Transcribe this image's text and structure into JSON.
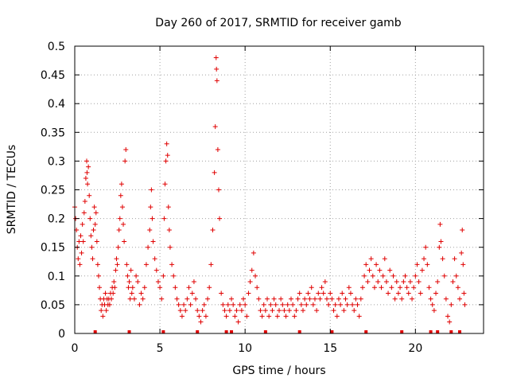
{
  "chart_data": {
    "type": "scatter",
    "title": "Day 260 of 2017, SRMTID for receiver gamb",
    "xlabel": "GPS time / hours",
    "ylabel": "SRMTID / TECUs",
    "xlim": [
      0,
      24
    ],
    "ylim": [
      0,
      0.5
    ],
    "grid": true,
    "marker": "+",
    "color": "#e00000",
    "x_ticks": [
      {
        "value": 0,
        "label": "0"
      },
      {
        "value": 5,
        "label": "5"
      },
      {
        "value": 10,
        "label": "10"
      },
      {
        "value": 15,
        "label": "15"
      },
      {
        "value": 20,
        "label": "20"
      }
    ],
    "y_ticks": [
      {
        "value": 0,
        "label": "0"
      },
      {
        "value": 0.05,
        "label": "0.05"
      },
      {
        "value": 0.1,
        "label": "0.1"
      },
      {
        "value": 0.15,
        "label": "0.15"
      },
      {
        "value": 0.2,
        "label": "0.2"
      },
      {
        "value": 0.25,
        "label": "0.25"
      },
      {
        "value": 0.3,
        "label": "0.3"
      },
      {
        "value": 0.35,
        "label": "0.35"
      },
      {
        "value": 0.4,
        "label": "0.4"
      },
      {
        "value": 0.45,
        "label": "0.45"
      },
      {
        "value": 0.5,
        "label": "0.5"
      }
    ],
    "series": [
      {
        "name": "SRMTID",
        "points": [
          [
            0.0,
            0.22
          ],
          [
            0.05,
            0.2
          ],
          [
            0.1,
            0.18
          ],
          [
            0.15,
            0.15
          ],
          [
            0.2,
            0.13
          ],
          [
            0.25,
            0.16
          ],
          [
            0.3,
            0.12
          ],
          [
            0.35,
            0.17
          ],
          [
            0.4,
            0.14
          ],
          [
            0.45,
            0.19
          ],
          [
            0.5,
            0.16
          ],
          [
            0.55,
            0.21
          ],
          [
            0.6,
            0.23
          ],
          [
            0.65,
            0.27
          ],
          [
            0.7,
            0.3
          ],
          [
            0.72,
            0.28
          ],
          [
            0.75,
            0.26
          ],
          [
            0.8,
            0.29
          ],
          [
            0.85,
            0.24
          ],
          [
            0.9,
            0.2
          ],
          [
            0.95,
            0.17
          ],
          [
            1.0,
            0.15
          ],
          [
            1.05,
            0.13
          ],
          [
            1.1,
            0.18
          ],
          [
            1.15,
            0.22
          ],
          [
            1.2,
            0.19
          ],
          [
            1.25,
            0.21
          ],
          [
            1.3,
            0.16
          ],
          [
            1.35,
            0.12
          ],
          [
            1.4,
            0.1
          ],
          [
            1.45,
            0.08
          ],
          [
            1.5,
            0.06
          ],
          [
            1.55,
            0.04
          ],
          [
            1.6,
            0.05
          ],
          [
            1.65,
            0.03
          ],
          [
            1.7,
            0.06
          ],
          [
            1.75,
            0.05
          ],
          [
            1.8,
            0.07
          ],
          [
            1.85,
            0.04
          ],
          [
            1.9,
            0.06
          ],
          [
            1.95,
            0.05
          ],
          [
            2.0,
            0.06
          ],
          [
            2.05,
            0.05
          ],
          [
            2.1,
            0.07
          ],
          [
            2.15,
            0.06
          ],
          [
            2.2,
            0.08
          ],
          [
            2.25,
            0.07
          ],
          [
            2.3,
            0.09
          ],
          [
            2.35,
            0.08
          ],
          [
            2.4,
            0.11
          ],
          [
            2.45,
            0.13
          ],
          [
            2.5,
            0.12
          ],
          [
            2.55,
            0.15
          ],
          [
            2.6,
            0.18
          ],
          [
            2.65,
            0.2
          ],
          [
            2.7,
            0.24
          ],
          [
            2.75,
            0.26
          ],
          [
            2.8,
            0.22
          ],
          [
            2.85,
            0.19
          ],
          [
            2.9,
            0.16
          ],
          [
            2.95,
            0.3
          ],
          [
            3.0,
            0.32
          ],
          [
            3.05,
            0.12
          ],
          [
            3.1,
            0.1
          ],
          [
            3.15,
            0.08
          ],
          [
            3.2,
            0.09
          ],
          [
            3.25,
            0.06
          ],
          [
            3.3,
            0.11
          ],
          [
            3.35,
            0.07
          ],
          [
            3.4,
            0.08
          ],
          [
            3.5,
            0.06
          ],
          [
            3.6,
            0.1
          ],
          [
            3.7,
            0.09
          ],
          [
            3.8,
            0.05
          ],
          [
            3.9,
            0.07
          ],
          [
            4.0,
            0.06
          ],
          [
            4.1,
            0.08
          ],
          [
            4.2,
            0.12
          ],
          [
            4.3,
            0.15
          ],
          [
            4.4,
            0.18
          ],
          [
            4.45,
            0.22
          ],
          [
            4.5,
            0.25
          ],
          [
            4.55,
            0.2
          ],
          [
            4.6,
            0.16
          ],
          [
            4.7,
            0.13
          ],
          [
            4.8,
            0.11
          ],
          [
            4.9,
            0.09
          ],
          [
            5.0,
            0.08
          ],
          [
            5.1,
            0.06
          ],
          [
            5.2,
            0.1
          ],
          [
            5.25,
            0.2
          ],
          [
            5.3,
            0.26
          ],
          [
            5.35,
            0.3
          ],
          [
            5.4,
            0.33
          ],
          [
            5.45,
            0.31
          ],
          [
            5.5,
            0.22
          ],
          [
            5.55,
            0.18
          ],
          [
            5.6,
            0.15
          ],
          [
            5.7,
            0.12
          ],
          [
            5.8,
            0.1
          ],
          [
            5.9,
            0.08
          ],
          [
            6.0,
            0.06
          ],
          [
            6.1,
            0.05
          ],
          [
            6.2,
            0.04
          ],
          [
            6.3,
            0.03
          ],
          [
            6.4,
            0.05
          ],
          [
            6.5,
            0.04
          ],
          [
            6.6,
            0.06
          ],
          [
            6.7,
            0.08
          ],
          [
            6.8,
            0.05
          ],
          [
            6.9,
            0.07
          ],
          [
            7.0,
            0.09
          ],
          [
            7.1,
            0.06
          ],
          [
            7.2,
            0.04
          ],
          [
            7.3,
            0.03
          ],
          [
            7.4,
            0.02
          ],
          [
            7.5,
            0.04
          ],
          [
            7.6,
            0.05
          ],
          [
            7.7,
            0.03
          ],
          [
            7.8,
            0.06
          ],
          [
            7.9,
            0.08
          ],
          [
            8.0,
            0.12
          ],
          [
            8.1,
            0.18
          ],
          [
            8.2,
            0.28
          ],
          [
            8.25,
            0.36
          ],
          [
            8.3,
            0.48
          ],
          [
            8.32,
            0.46
          ],
          [
            8.35,
            0.44
          ],
          [
            8.4,
            0.32
          ],
          [
            8.45,
            0.25
          ],
          [
            8.5,
            0.2
          ],
          [
            8.6,
            0.07
          ],
          [
            8.7,
            0.05
          ],
          [
            8.8,
            0.04
          ],
          [
            8.9,
            0.03
          ],
          [
            9.0,
            0.05
          ],
          [
            9.1,
            0.04
          ],
          [
            9.2,
            0.06
          ],
          [
            9.3,
            0.05
          ],
          [
            9.4,
            0.03
          ],
          [
            9.5,
            0.04
          ],
          [
            9.6,
            0.02
          ],
          [
            9.7,
            0.05
          ],
          [
            9.8,
            0.04
          ],
          [
            9.9,
            0.06
          ],
          [
            10.0,
            0.05
          ],
          [
            10.1,
            0.03
          ],
          [
            10.2,
            0.07
          ],
          [
            10.3,
            0.09
          ],
          [
            10.4,
            0.11
          ],
          [
            10.5,
            0.14
          ],
          [
            10.6,
            0.1
          ],
          [
            10.7,
            0.08
          ],
          [
            10.8,
            0.06
          ],
          [
            10.9,
            0.04
          ],
          [
            11.0,
            0.03
          ],
          [
            11.1,
            0.05
          ],
          [
            11.2,
            0.04
          ],
          [
            11.3,
            0.06
          ],
          [
            11.4,
            0.03
          ],
          [
            11.5,
            0.05
          ],
          [
            11.6,
            0.04
          ],
          [
            11.7,
            0.06
          ],
          [
            11.8,
            0.05
          ],
          [
            11.9,
            0.03
          ],
          [
            12.0,
            0.04
          ],
          [
            12.1,
            0.06
          ],
          [
            12.2,
            0.05
          ],
          [
            12.3,
            0.04
          ],
          [
            12.4,
            0.03
          ],
          [
            12.5,
            0.05
          ],
          [
            12.6,
            0.04
          ],
          [
            12.7,
            0.06
          ],
          [
            12.8,
            0.05
          ],
          [
            12.9,
            0.03
          ],
          [
            13.0,
            0.04
          ],
          [
            13.1,
            0.06
          ],
          [
            13.2,
            0.07
          ],
          [
            13.3,
            0.05
          ],
          [
            13.4,
            0.04
          ],
          [
            13.5,
            0.06
          ],
          [
            13.6,
            0.05
          ],
          [
            13.7,
            0.07
          ],
          [
            13.8,
            0.06
          ],
          [
            13.9,
            0.08
          ],
          [
            14.0,
            0.05
          ],
          [
            14.1,
            0.06
          ],
          [
            14.2,
            0.04
          ],
          [
            14.3,
            0.07
          ],
          [
            14.4,
            0.06
          ],
          [
            14.5,
            0.08
          ],
          [
            14.6,
            0.07
          ],
          [
            14.7,
            0.09
          ],
          [
            14.8,
            0.06
          ],
          [
            14.9,
            0.05
          ],
          [
            15.0,
            0.07
          ],
          [
            15.1,
            0.06
          ],
          [
            15.2,
            0.04
          ],
          [
            15.3,
            0.05
          ],
          [
            15.4,
            0.03
          ],
          [
            15.5,
            0.06
          ],
          [
            15.6,
            0.05
          ],
          [
            15.7,
            0.07
          ],
          [
            15.8,
            0.04
          ],
          [
            15.9,
            0.06
          ],
          [
            16.0,
            0.05
          ],
          [
            16.1,
            0.08
          ],
          [
            16.2,
            0.07
          ],
          [
            16.3,
            0.05
          ],
          [
            16.4,
            0.04
          ],
          [
            16.5,
            0.06
          ],
          [
            16.6,
            0.05
          ],
          [
            16.7,
            0.03
          ],
          [
            16.8,
            0.06
          ],
          [
            16.9,
            0.08
          ],
          [
            17.0,
            0.1
          ],
          [
            17.1,
            0.12
          ],
          [
            17.2,
            0.09
          ],
          [
            17.3,
            0.11
          ],
          [
            17.4,
            0.13
          ],
          [
            17.5,
            0.1
          ],
          [
            17.6,
            0.08
          ],
          [
            17.7,
            0.12
          ],
          [
            17.8,
            0.09
          ],
          [
            17.9,
            0.11
          ],
          [
            18.0,
            0.08
          ],
          [
            18.1,
            0.1
          ],
          [
            18.2,
            0.13
          ],
          [
            18.3,
            0.09
          ],
          [
            18.4,
            0.07
          ],
          [
            18.5,
            0.11
          ],
          [
            18.6,
            0.08
          ],
          [
            18.7,
            0.1
          ],
          [
            18.8,
            0.06
          ],
          [
            18.9,
            0.09
          ],
          [
            19.0,
            0.07
          ],
          [
            19.1,
            0.08
          ],
          [
            19.2,
            0.06
          ],
          [
            19.3,
            0.09
          ],
          [
            19.4,
            0.1
          ],
          [
            19.5,
            0.08
          ],
          [
            19.6,
            0.07
          ],
          [
            19.7,
            0.09
          ],
          [
            19.8,
            0.06
          ],
          [
            19.9,
            0.08
          ],
          [
            20.0,
            0.1
          ],
          [
            20.1,
            0.12
          ],
          [
            20.2,
            0.09
          ],
          [
            20.3,
            0.07
          ],
          [
            20.4,
            0.11
          ],
          [
            20.5,
            0.13
          ],
          [
            20.6,
            0.15
          ],
          [
            20.7,
            0.12
          ],
          [
            20.8,
            0.08
          ],
          [
            20.9,
            0.06
          ],
          [
            21.0,
            0.05
          ],
          [
            21.1,
            0.04
          ],
          [
            21.2,
            0.07
          ],
          [
            21.3,
            0.09
          ],
          [
            21.4,
            0.15
          ],
          [
            21.45,
            0.19
          ],
          [
            21.5,
            0.16
          ],
          [
            21.6,
            0.13
          ],
          [
            21.7,
            0.1
          ],
          [
            21.8,
            0.06
          ],
          [
            21.9,
            0.03
          ],
          [
            22.0,
            0.02
          ],
          [
            22.1,
            0.05
          ],
          [
            22.2,
            0.09
          ],
          [
            22.3,
            0.13
          ],
          [
            22.4,
            0.1
          ],
          [
            22.5,
            0.08
          ],
          [
            22.6,
            0.06
          ],
          [
            22.7,
            0.14
          ],
          [
            22.75,
            0.18
          ],
          [
            22.8,
            0.12
          ],
          [
            22.85,
            0.07
          ],
          [
            22.9,
            0.05
          ]
        ]
      }
    ],
    "gap_markers_hours": [
      1.2,
      3.2,
      5.2,
      7.2,
      8.9,
      9.2,
      11.2,
      13.2,
      15.1,
      17.1,
      19.2,
      20.9,
      21.3,
      22.1,
      22.6
    ]
  }
}
